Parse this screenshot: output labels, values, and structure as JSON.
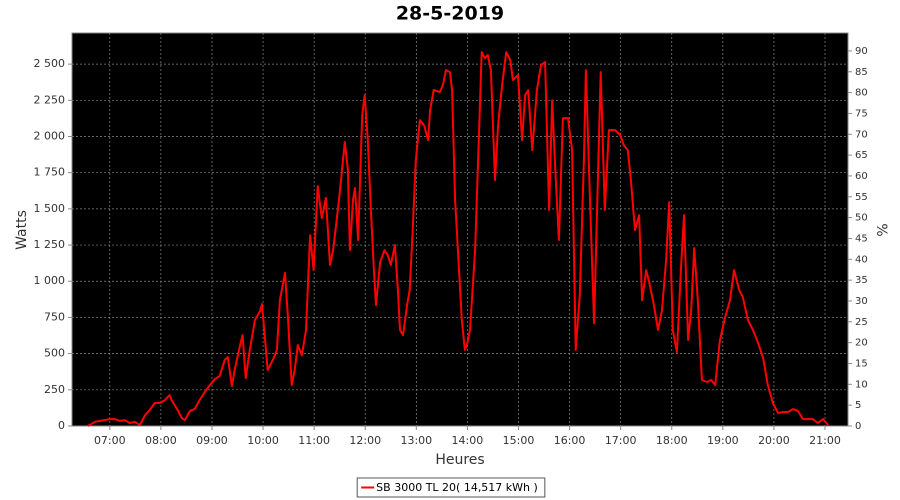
{
  "chart_data": {
    "type": "line",
    "title": "28-5-2019",
    "x_label": "Heures",
    "y_label": "Watts",
    "y2_label": "%",
    "xlim": [
      6.26,
      21.45
    ],
    "xticks": [
      {
        "value": 7,
        "label": "07:00"
      },
      {
        "value": 8,
        "label": "08:00"
      },
      {
        "value": 9,
        "label": "09:00"
      },
      {
        "value": 10,
        "label": "10:00"
      },
      {
        "value": 11,
        "label": "11:00"
      },
      {
        "value": 12,
        "label": "12:00"
      },
      {
        "value": 13,
        "label": "13:00"
      },
      {
        "value": 14,
        "label": "14:00"
      },
      {
        "value": 15,
        "label": "15:00"
      },
      {
        "value": 16,
        "label": "16:00"
      },
      {
        "value": 17,
        "label": "17:00"
      },
      {
        "value": 18,
        "label": "18:00"
      },
      {
        "value": 19,
        "label": "19:00"
      },
      {
        "value": 20,
        "label": "20:00"
      },
      {
        "value": 21,
        "label": "21:00"
      }
    ],
    "ylim": [
      0,
      2715
    ],
    "yticks": [
      0,
      250,
      500,
      750,
      {
        "value": 1000,
        "label": "1 000"
      },
      {
        "value": 1250,
        "label": "1 250"
      },
      {
        "value": 1500,
        "label": "1 500"
      },
      {
        "value": 1750,
        "label": "1 750"
      },
      {
        "value": 2000,
        "label": "2 000"
      },
      {
        "value": 2250,
        "label": "2 250"
      },
      {
        "value": 2500,
        "label": "2 500"
      }
    ],
    "y2lim": [
      0,
      94.3
    ],
    "y2ticks": [
      0,
      5,
      10,
      15,
      20,
      25,
      30,
      35,
      40,
      45,
      50,
      55,
      60,
      65,
      70,
      75,
      80,
      85,
      90
    ],
    "grid": true,
    "legend": "bottom",
    "x": [
      6.57,
      6.71,
      6.8,
      6.9,
      7.0,
      7.1,
      7.2,
      7.29,
      7.39,
      7.49,
      7.59,
      7.69,
      7.78,
      7.88,
      7.98,
      8.08,
      8.17,
      8.21,
      8.33,
      8.41,
      8.47,
      8.57,
      8.66,
      8.76,
      8.86,
      8.96,
      9.06,
      9.15,
      9.25,
      9.31,
      9.39,
      9.45,
      9.55,
      9.6,
      9.66,
      9.74,
      9.84,
      9.94,
      9.98,
      10.04,
      10.09,
      10.19,
      10.27,
      10.33,
      10.43,
      10.49,
      10.56,
      10.62,
      10.68,
      10.76,
      10.84,
      10.92,
      10.99,
      11.07,
      11.15,
      11.23,
      11.31,
      11.37,
      11.43,
      11.5,
      11.6,
      11.66,
      11.7,
      11.76,
      11.8,
      11.86,
      11.94,
      11.99,
      12.05,
      12.11,
      12.17,
      12.21,
      12.29,
      12.38,
      12.44,
      12.5,
      12.58,
      12.64,
      12.68,
      12.74,
      12.82,
      12.87,
      12.93,
      12.99,
      13.07,
      13.15,
      13.23,
      13.27,
      13.34,
      13.46,
      13.52,
      13.58,
      13.66,
      13.7,
      13.76,
      13.82,
      13.89,
      13.95,
      13.99,
      14.05,
      14.15,
      14.21,
      14.28,
      14.34,
      14.4,
      14.46,
      14.54,
      14.6,
      14.68,
      14.76,
      14.84,
      14.89,
      14.99,
      15.07,
      15.13,
      15.19,
      15.27,
      15.36,
      15.44,
      15.52,
      15.6,
      15.66,
      15.72,
      15.79,
      15.87,
      15.97,
      16.05,
      16.12,
      16.2,
      16.28,
      16.32,
      16.4,
      16.48,
      16.54,
      16.61,
      16.69,
      16.77,
      16.89,
      16.99,
      17.06,
      17.14,
      17.2,
      17.28,
      17.36,
      17.42,
      17.5,
      17.57,
      17.65,
      17.73,
      17.81,
      17.89,
      17.95,
      18.02,
      18.1,
      18.18,
      18.24,
      18.32,
      18.38,
      18.44,
      18.51,
      18.59,
      18.69,
      18.77,
      18.85,
      18.94,
      19.04,
      19.14,
      19.22,
      19.32,
      19.39,
      19.49,
      19.59,
      19.69,
      19.79,
      19.88,
      19.98,
      20.08,
      20.18,
      20.28,
      20.37,
      20.47,
      20.57,
      20.67,
      20.76,
      20.86,
      20.96,
      21.06
    ],
    "series": [
      {
        "name": "SB 3000 TL 20( 14,517 kWh )",
        "color": "#ff0000",
        "values": [
          0,
          28,
          35,
          41,
          48,
          48,
          35,
          41,
          21,
          28,
          7,
          76,
          110,
          159,
          159,
          179,
          214,
          179,
          110,
          55,
          41,
          104,
          117,
          179,
          235,
          283,
          325,
          345,
          456,
          476,
          276,
          400,
          559,
          628,
          331,
          525,
          732,
          794,
          842,
          594,
          387,
          456,
          525,
          870,
          1057,
          732,
          283,
          387,
          559,
          490,
          663,
          1319,
          1077,
          1657,
          1436,
          1575,
          1112,
          1215,
          1388,
          1609,
          1961,
          1768,
          1215,
          1561,
          1644,
          1285,
          2148,
          2286,
          1975,
          1492,
          1077,
          836,
          1133,
          1215,
          1181,
          1112,
          1250,
          939,
          663,
          628,
          835,
          939,
          1354,
          1837,
          2113,
          2079,
          1975,
          2182,
          2321,
          2307,
          2355,
          2459,
          2445,
          2320,
          1561,
          1181,
          732,
          525,
          559,
          663,
          1215,
          1837,
          2583,
          2541,
          2562,
          2459,
          1699,
          2079,
          2355,
          2583,
          2528,
          2390,
          2424,
          1975,
          2286,
          2320,
          1906,
          2320,
          2493,
          2514,
          1492,
          2251,
          1768,
          1285,
          2127,
          2127,
          1906,
          525,
          904,
          1837,
          2459,
          1561,
          711,
          1526,
          2445,
          1492,
          2044,
          2044,
          2010,
          1940,
          1906,
          1699,
          1354,
          1457,
          870,
          1077,
          974,
          835,
          663,
          801,
          1146,
          1547,
          663,
          511,
          1077,
          1457,
          594,
          801,
          1229,
          870,
          318,
          304,
          318,
          283,
          587,
          746,
          870,
          1077,
          939,
          891,
          732,
          663,
          573,
          469,
          283,
          159,
          90,
          97,
          97,
          117,
          104,
          48,
          48,
          48,
          21,
          48,
          7
        ]
      }
    ]
  }
}
